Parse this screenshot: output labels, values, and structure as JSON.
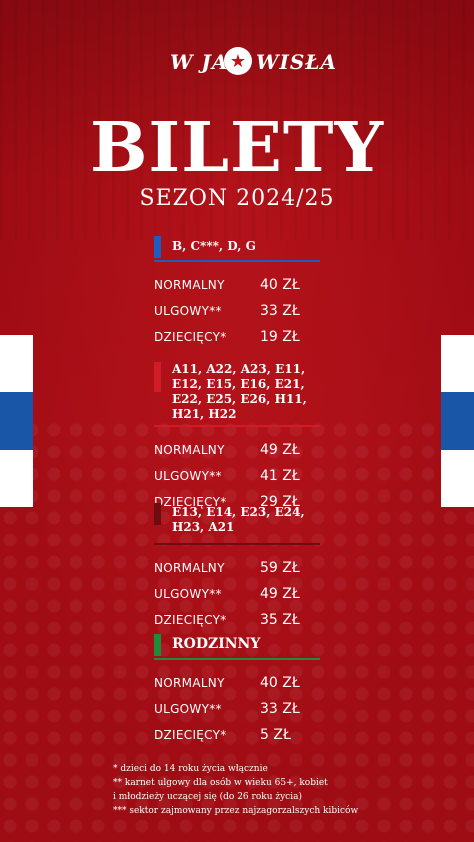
{
  "colors": {
    "background": "#b8121a",
    "flag_blue": "#1a56a8",
    "flag_white": "#ffffff",
    "marker_blue": "#1c5dbf",
    "marker_red": "#d11b26",
    "marker_darkred": "#6e0c12",
    "marker_green": "#1e8c3a"
  },
  "logo": {
    "text_left": "W JAK",
    "text_right": "WISŁA",
    "star": "★"
  },
  "title": "BILETY",
  "subtitle": "SEZON 2024/25",
  "sections": [
    {
      "head": "B, C***, D, G",
      "marker": "marker_blue",
      "rows": [
        {
          "label": "NORMALNY",
          "price": "40 ZŁ"
        },
        {
          "label": "ULGOWY**",
          "price": "33 ZŁ"
        },
        {
          "label": "DZIECIĘCY*",
          "price": "19 ZŁ"
        }
      ]
    },
    {
      "head": "A11, A22, A23, E11, E12, E15, E16, E21, E22, E25, E26, H11, H21, H22",
      "marker": "marker_red",
      "rows": [
        {
          "label": "NORMALNY",
          "price": "49 ZŁ"
        },
        {
          "label": "ULGOWY**",
          "price": "41 ZŁ"
        },
        {
          "label": "DZIECIĘCY*",
          "price": "29 ZŁ"
        }
      ]
    },
    {
      "head": "E13, E14, E23, E24, H23, A21",
      "marker": "marker_darkred",
      "rows": [
        {
          "label": "NORMALNY",
          "price": "59 ZŁ"
        },
        {
          "label": "ULGOWY**",
          "price": "49 ZŁ"
        },
        {
          "label": "DZIECIĘCY*",
          "price": "35 ZŁ"
        }
      ]
    },
    {
      "head": "RODZINNY",
      "marker": "marker_green",
      "rows": [
        {
          "label": "NORMALNY",
          "price": "40 ZŁ"
        },
        {
          "label": "ULGOWY**",
          "price": "33 ZŁ"
        },
        {
          "label": "DZIECIĘCY*",
          "price": "5 ZŁ"
        }
      ]
    }
  ],
  "notes": [
    "* dzieci do 14 roku życia włącznie",
    "** karnet ulgowy dla osób w wieku 65+, kobiet",
    "i młodzieży uczącej się (do 26 roku życia)",
    "*** sektor zajmowany przez najzagorzalszych kibiców"
  ]
}
